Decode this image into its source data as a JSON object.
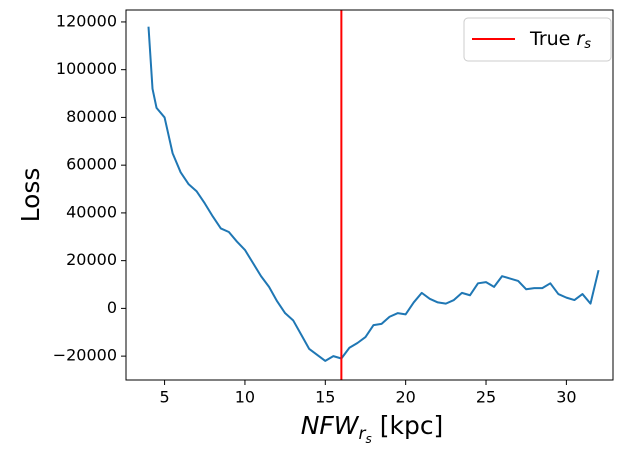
{
  "chart_data": {
    "type": "line",
    "ylabel": "Loss",
    "xlabel": {
      "base": "NFW",
      "subscript": "r",
      "subsubscript": "s",
      "unit": " [kpc]"
    },
    "x": [
      4,
      4.25,
      4.5,
      5,
      5.5,
      6,
      6.5,
      7,
      7.5,
      8,
      8.5,
      9,
      9.5,
      10,
      10.5,
      11,
      11.5,
      12,
      12.5,
      13,
      13.5,
      14,
      14.5,
      15,
      15.5,
      16,
      16.5,
      17,
      17.5,
      18,
      18.5,
      19,
      19.5,
      20,
      20.5,
      21,
      21.5,
      22,
      22.5,
      23,
      23.5,
      24,
      24.5,
      25,
      25.5,
      26,
      26.5,
      27,
      27.5,
      28,
      28.5,
      29,
      29.5,
      30,
      30.5,
      31,
      31.5,
      32
    ],
    "series": [
      {
        "color": "#1f77b4",
        "values": [
          118000,
          92000,
          84000,
          80000,
          65000,
          57000,
          52000,
          49000,
          44000,
          38500,
          33500,
          32000,
          28000,
          24500,
          19000,
          13500,
          9000,
          3000,
          -2000,
          -5000,
          -11000,
          -17000,
          -19500,
          -22000,
          -20000,
          -21000,
          -16500,
          -14500,
          -12000,
          -7000,
          -6500,
          -3500,
          -2000,
          -2500,
          2500,
          6500,
          4000,
          2500,
          2000,
          3500,
          6500,
          5500,
          10500,
          11000,
          9000,
          13500,
          12500,
          11500,
          8000,
          8500,
          8500,
          10500,
          6000,
          4500,
          3500,
          6000,
          2000,
          16000
        ]
      }
    ],
    "vline": {
      "x": 16,
      "color": "#ff0000",
      "label": {
        "text": "True ",
        "var": "r",
        "sub": "s"
      }
    },
    "xlim": [
      2.6,
      32.9
    ],
    "ylim": [
      -30000,
      125000
    ],
    "xticks": [
      5,
      10,
      15,
      20,
      25,
      30
    ],
    "yticks": [
      120000,
      100000,
      80000,
      60000,
      40000,
      20000,
      0,
      {
        "value": -20000,
        "label": "−20000"
      }
    ],
    "legend": "upper right"
  }
}
